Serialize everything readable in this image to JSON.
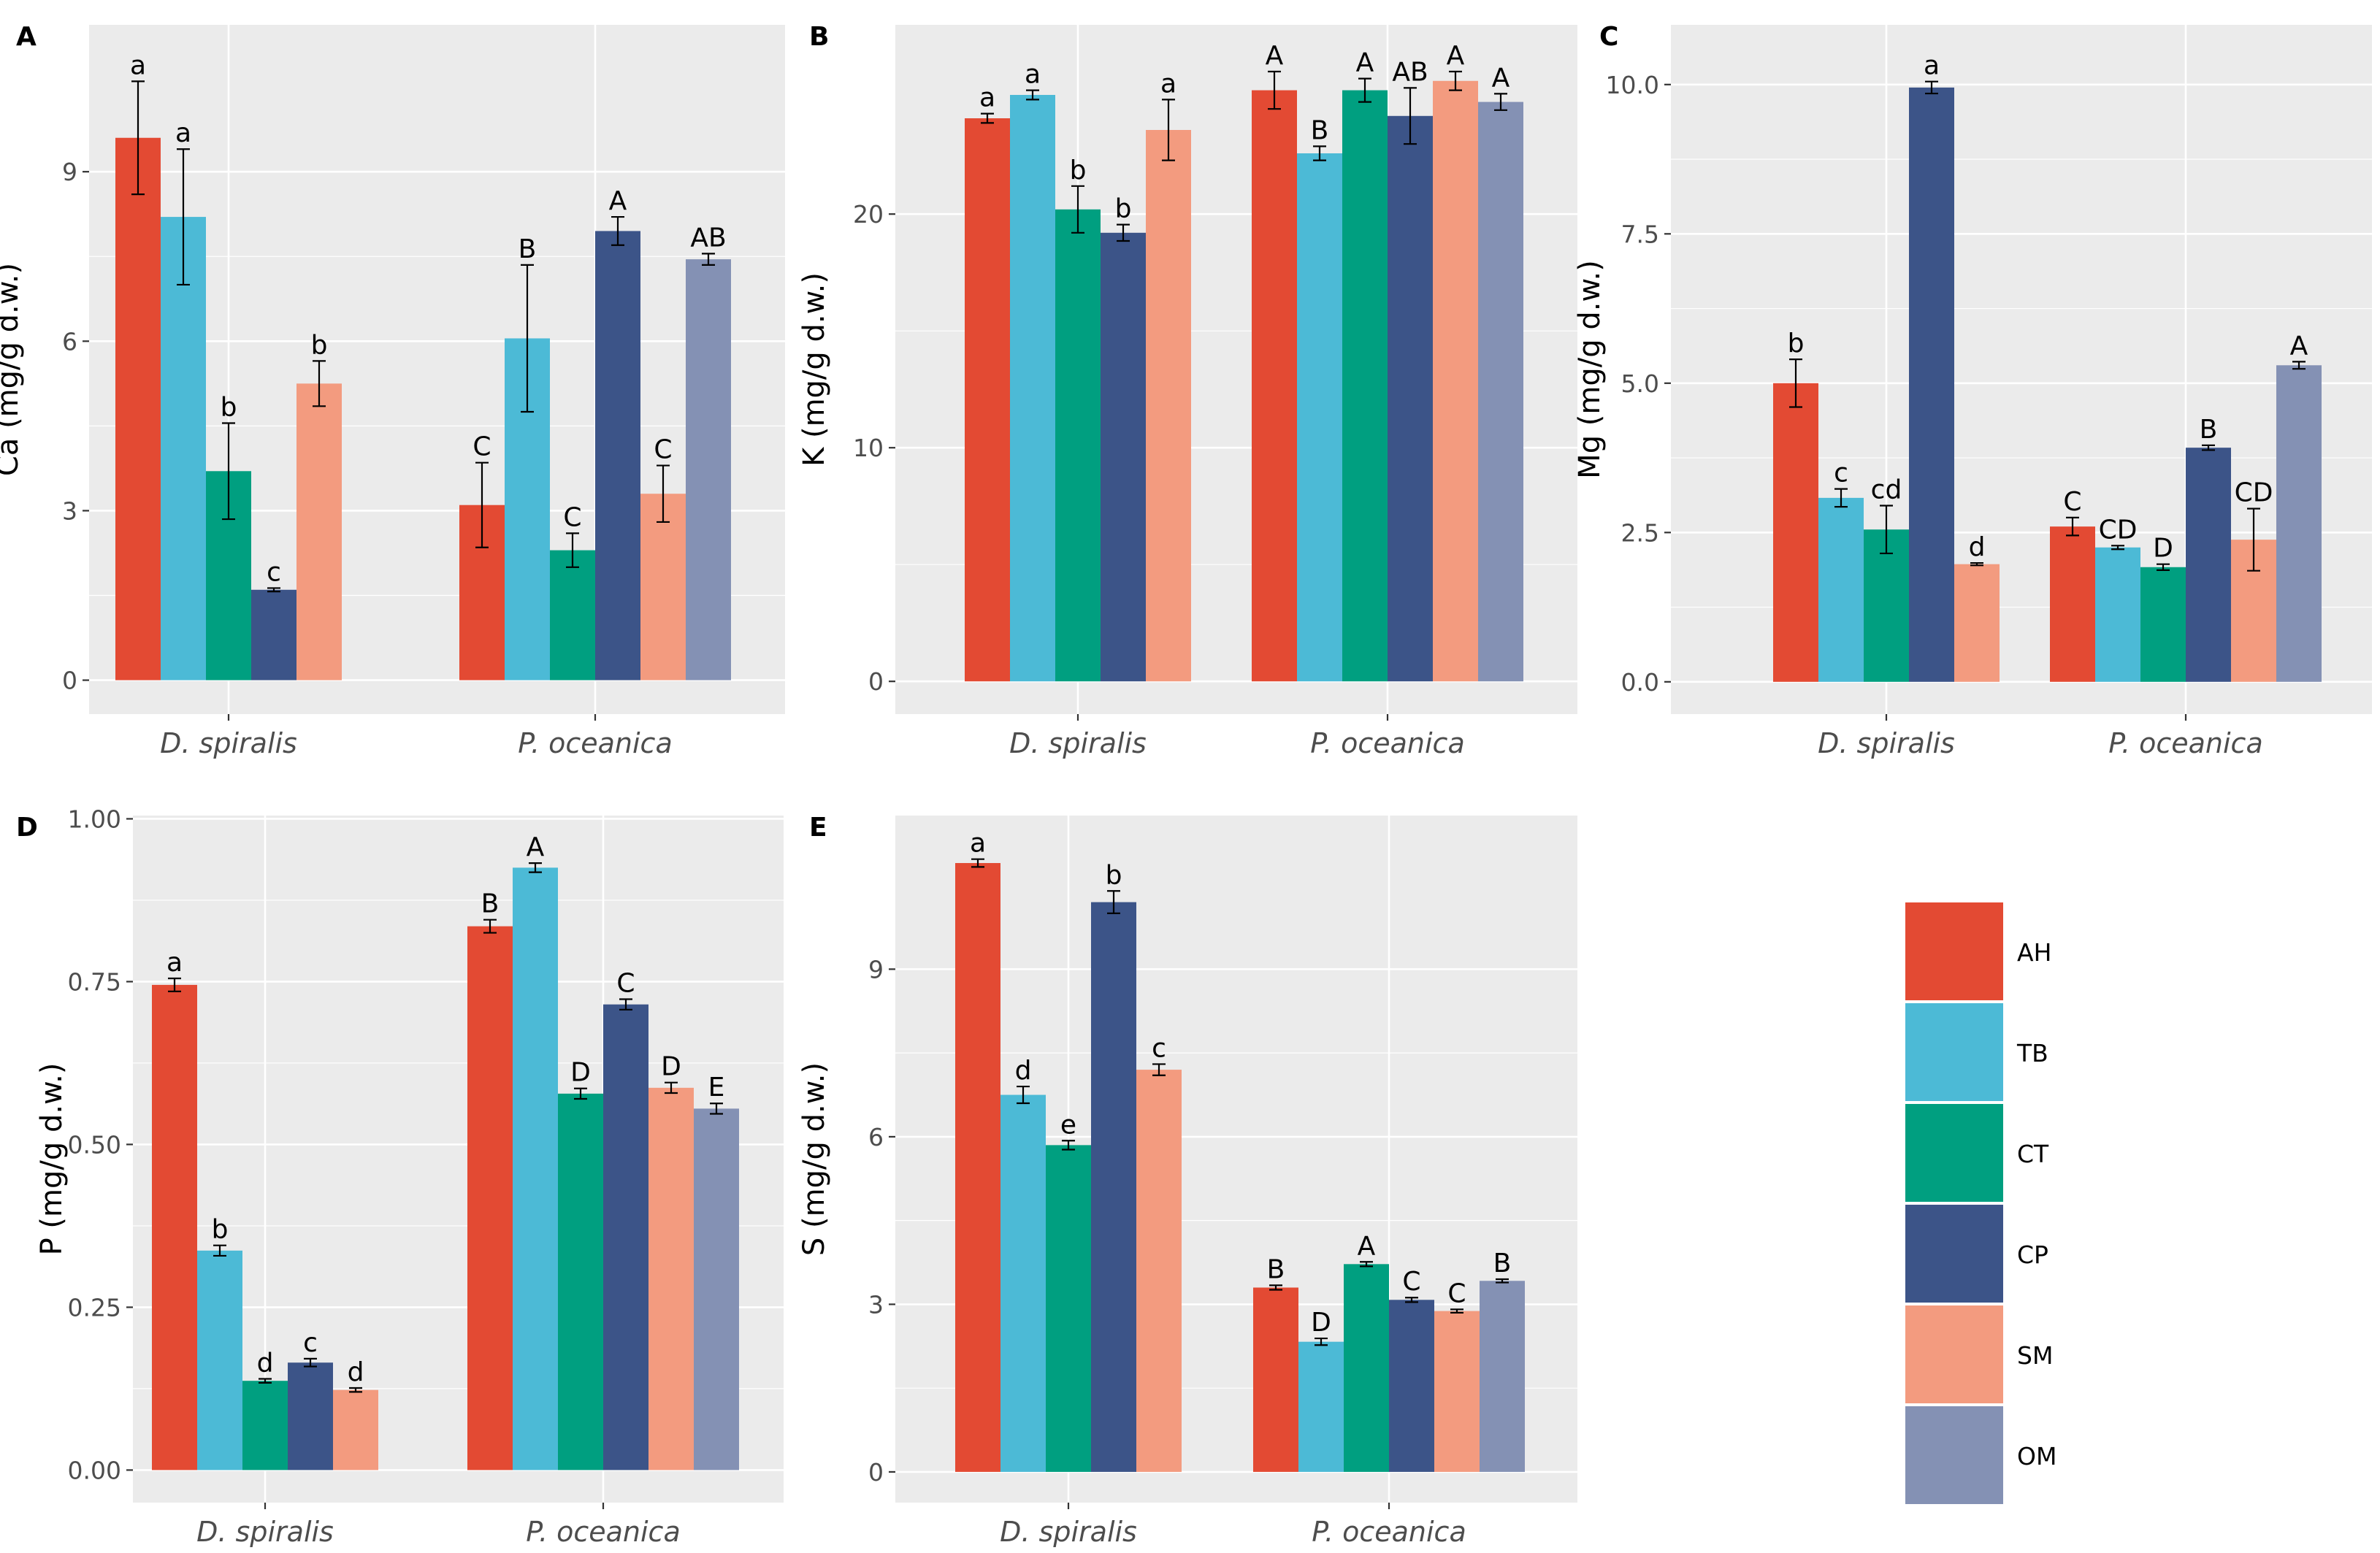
{
  "legend": {
    "items": [
      {
        "label": "AH",
        "color": "#e34a33"
      },
      {
        "label": "TB",
        "color": "#4cbad6"
      },
      {
        "label": "CT",
        "color": "#009f80"
      },
      {
        "label": "CP",
        "color": "#3c5488"
      },
      {
        "label": "SM",
        "color": "#f39b7f"
      },
      {
        "label": "OM",
        "color": "#8491b4"
      }
    ]
  },
  "chart_data": [
    {
      "panel": "A",
      "type": "bar",
      "ylabel": "Ca (mg/g d.w.)",
      "categories": [
        "D. spiralis",
        "P. oceanica"
      ],
      "ylim": [
        -0.6,
        11.6
      ],
      "yticks": [
        0,
        3,
        6,
        9
      ],
      "ytick_labels": [
        "0",
        "3",
        "6",
        "9"
      ],
      "groups": [
        {
          "category": "D. spiralis",
          "bars": [
            {
              "series": "AH",
              "value": 9.6,
              "err": 1.0,
              "label": "a"
            },
            {
              "series": "TB",
              "value": 8.2,
              "err": 1.2,
              "label": "a"
            },
            {
              "series": "CT",
              "value": 3.7,
              "err": 0.85,
              "label": "b"
            },
            {
              "series": "CP",
              "value": 1.6,
              "err": 0.03,
              "label": "c"
            },
            {
              "series": "SM",
              "value": 5.25,
              "err": 0.4,
              "label": "b"
            }
          ]
        },
        {
          "category": "P. oceanica",
          "bars": [
            {
              "series": "AH",
              "value": 3.1,
              "err": 0.75,
              "label": "C"
            },
            {
              "series": "TB",
              "value": 6.05,
              "err": 1.3,
              "label": "B"
            },
            {
              "series": "CT",
              "value": 2.3,
              "err": 0.3,
              "label": "C"
            },
            {
              "series": "CP",
              "value": 7.95,
              "err": 0.25,
              "label": "A"
            },
            {
              "series": "SM",
              "value": 3.3,
              "err": 0.5,
              "label": "C"
            },
            {
              "series": "OM",
              "value": 7.45,
              "err": 0.1,
              "label": "AB"
            }
          ]
        }
      ]
    },
    {
      "panel": "B",
      "type": "bar",
      "ylabel": "K (mg/g d.w.)",
      "categories": [
        "D. spiralis",
        "P. oceanica"
      ],
      "ylim": [
        -1.4,
        28.1
      ],
      "yticks": [
        0,
        10,
        20
      ],
      "ytick_labels": [
        "0",
        "10",
        "20"
      ],
      "groups": [
        {
          "category": "D. spiralis",
          "bars": [
            {
              "series": "AH",
              "value": 24.1,
              "err": 0.2,
              "label": "a"
            },
            {
              "series": "TB",
              "value": 25.1,
              "err": 0.2,
              "label": "a"
            },
            {
              "series": "CT",
              "value": 20.2,
              "err": 1.0,
              "label": "b"
            },
            {
              "series": "CP",
              "value": 19.2,
              "err": 0.35,
              "label": "b"
            },
            {
              "series": "SM",
              "value": 23.6,
              "err": 1.3,
              "label": "a"
            }
          ]
        },
        {
          "category": "P. oceanica",
          "bars": [
            {
              "series": "AH",
              "value": 25.3,
              "err": 0.8,
              "label": "A"
            },
            {
              "series": "TB",
              "value": 22.6,
              "err": 0.3,
              "label": "B"
            },
            {
              "series": "CT",
              "value": 25.3,
              "err": 0.5,
              "label": "A"
            },
            {
              "series": "CP",
              "value": 24.2,
              "err": 1.2,
              "label": "AB"
            },
            {
              "series": "SM",
              "value": 25.7,
              "err": 0.4,
              "label": "A"
            },
            {
              "series": "OM",
              "value": 24.8,
              "err": 0.35,
              "label": "A"
            }
          ]
        }
      ]
    },
    {
      "panel": "C",
      "type": "bar",
      "ylabel": "Mg (mg/g d.w.)",
      "categories": [
        "D. spiralis",
        "P. oceanica"
      ],
      "ylim": [
        -0.54,
        11.0
      ],
      "yticks": [
        0,
        2.5,
        5,
        7.5,
        10
      ],
      "ytick_labels": [
        "0.0",
        "2.5",
        "5.0",
        "7.5",
        "10.0"
      ],
      "groups": [
        {
          "category": "D. spiralis",
          "bars": [
            {
              "series": "AH",
              "value": 5.0,
              "err": 0.4,
              "label": "b"
            },
            {
              "series": "TB",
              "value": 3.08,
              "err": 0.15,
              "label": "c"
            },
            {
              "series": "CT",
              "value": 2.55,
              "err": 0.4,
              "label": "cd"
            },
            {
              "series": "CP",
              "value": 9.95,
              "err": 0.1,
              "label": "a"
            },
            {
              "series": "SM",
              "value": 1.97,
              "err": 0.02,
              "label": "d"
            }
          ]
        },
        {
          "category": "P. oceanica",
          "bars": [
            {
              "series": "AH",
              "value": 2.6,
              "err": 0.15,
              "label": "C"
            },
            {
              "series": "TB",
              "value": 2.25,
              "err": 0.03,
              "label": "CD"
            },
            {
              "series": "CT",
              "value": 1.92,
              "err": 0.05,
              "label": "D"
            },
            {
              "series": "CP",
              "value": 3.92,
              "err": 0.04,
              "label": "B"
            },
            {
              "series": "SM",
              "value": 2.38,
              "err": 0.52,
              "label": "CD"
            },
            {
              "series": "OM",
              "value": 5.3,
              "err": 0.06,
              "label": "A"
            }
          ]
        }
      ]
    },
    {
      "panel": "D",
      "type": "bar",
      "ylabel": "P (mg/g d.w.)",
      "categories": [
        "D. spiralis",
        "P. oceanica"
      ],
      "ylim": [
        -0.05,
        1.005
      ],
      "yticks": [
        0,
        0.25,
        0.5,
        0.75,
        1.0
      ],
      "ytick_labels": [
        "0.00",
        "0.25",
        "0.50",
        "0.75",
        "1.00"
      ],
      "groups": [
        {
          "category": "D. spiralis",
          "bars": [
            {
              "series": "AH",
              "value": 0.745,
              "err": 0.01,
              "label": "a"
            },
            {
              "series": "TB",
              "value": 0.337,
              "err": 0.008,
              "label": "b"
            },
            {
              "series": "CT",
              "value": 0.137,
              "err": 0.003,
              "label": "d"
            },
            {
              "series": "CP",
              "value": 0.165,
              "err": 0.006,
              "label": "c"
            },
            {
              "series": "SM",
              "value": 0.123,
              "err": 0.003,
              "label": "d"
            }
          ]
        },
        {
          "category": "P. oceanica",
          "bars": [
            {
              "series": "AH",
              "value": 0.835,
              "err": 0.01,
              "label": "B"
            },
            {
              "series": "TB",
              "value": 0.925,
              "err": 0.007,
              "label": "A"
            },
            {
              "series": "CT",
              "value": 0.578,
              "err": 0.008,
              "label": "D"
            },
            {
              "series": "CP",
              "value": 0.715,
              "err": 0.008,
              "label": "C"
            },
            {
              "series": "SM",
              "value": 0.587,
              "err": 0.008,
              "label": "D"
            },
            {
              "series": "OM",
              "value": 0.555,
              "err": 0.008,
              "label": "E"
            }
          ]
        }
      ]
    },
    {
      "panel": "E",
      "type": "bar",
      "ylabel": "S (mg/g d.w.)",
      "categories": [
        "D. spiralis",
        "P. oceanica"
      ],
      "ylim": [
        -0.55,
        11.75
      ],
      "yticks": [
        0,
        3,
        6,
        9
      ],
      "ytick_labels": [
        "0",
        "3",
        "6",
        "9"
      ],
      "groups": [
        {
          "category": "D. spiralis",
          "bars": [
            {
              "series": "AH",
              "value": 10.9,
              "err": 0.07,
              "label": "a"
            },
            {
              "series": "TB",
              "value": 6.75,
              "err": 0.15,
              "label": "d"
            },
            {
              "series": "CT",
              "value": 5.85,
              "err": 0.08,
              "label": "e"
            },
            {
              "series": "CP",
              "value": 10.2,
              "err": 0.2,
              "label": "b"
            },
            {
              "series": "SM",
              "value": 7.2,
              "err": 0.1,
              "label": "c"
            }
          ]
        },
        {
          "category": "P. oceanica",
          "bars": [
            {
              "series": "AH",
              "value": 3.3,
              "err": 0.04,
              "label": "B"
            },
            {
              "series": "TB",
              "value": 2.33,
              "err": 0.06,
              "label": "D"
            },
            {
              "series": "CT",
              "value": 3.72,
              "err": 0.04,
              "label": "A"
            },
            {
              "series": "CP",
              "value": 3.08,
              "err": 0.04,
              "label": "C"
            },
            {
              "series": "SM",
              "value": 2.88,
              "err": 0.03,
              "label": "C"
            },
            {
              "series": "OM",
              "value": 3.42,
              "err": 0.03,
              "label": "B"
            }
          ]
        }
      ]
    }
  ]
}
